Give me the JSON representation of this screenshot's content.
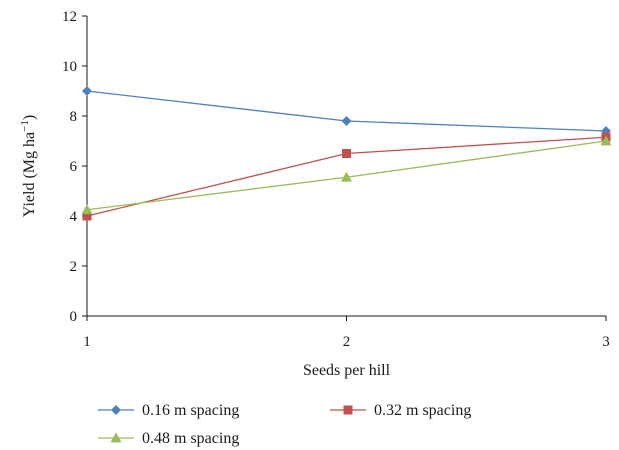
{
  "chart_data": {
    "type": "line",
    "x": [
      1,
      2,
      3
    ],
    "xlabel": "Seeds per hill",
    "ylabel_main": "Yield (Mg ha",
    "ylabel_sup": "−1",
    "ylabel_close": ")",
    "xlim": [
      1,
      3
    ],
    "ylim": [
      0,
      12
    ],
    "xticks": [
      "1",
      "2",
      "3"
    ],
    "yticks": [
      "0",
      "2",
      "4",
      "6",
      "8",
      "10",
      "12"
    ],
    "grid": false,
    "legend_position": "bottom",
    "series": [
      {
        "name": "0.16 m spacing",
        "values": [
          9.0,
          7.8,
          7.4
        ],
        "color": "#4f81bd",
        "marker": "diamond"
      },
      {
        "name": "0.32 m spacing",
        "values": [
          4.0,
          6.5,
          7.15
        ],
        "color": "#c0504d",
        "marker": "square"
      },
      {
        "name": "0.48 m spacing",
        "values": [
          4.25,
          5.55,
          7.0
        ],
        "color": "#9bbb59",
        "marker": "triangle"
      }
    ]
  }
}
